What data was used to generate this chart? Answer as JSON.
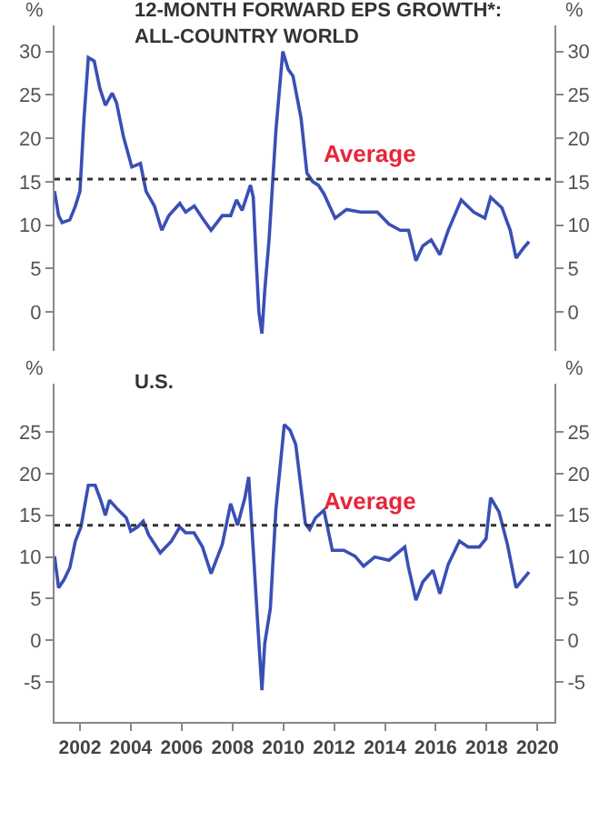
{
  "chart_data": [
    {
      "type": "line",
      "title": "12-MONTH FORWARD EPS GROWTH*:\nALL-COUNTRY WORLD",
      "ylabel": "%",
      "y2label": "%",
      "xlim": [
        2001,
        2020.67
      ],
      "ylim": [
        -4.5,
        33
      ],
      "yticks": [
        0,
        5,
        10,
        15,
        20,
        25,
        30
      ],
      "y2lim": [
        -4.5,
        33
      ],
      "y2ticks": [
        0,
        5,
        10,
        15,
        20,
        25,
        30
      ],
      "tick_labels": "y",
      "grid": false,
      "line_style": "solid",
      "marker": "none",
      "ref_lines": [
        {
          "axis": "y",
          "value": 15.3,
          "label": "Average",
          "color": "#333333",
          "line_style": "dotted"
        }
      ],
      "series": [
        {
          "color": "#3a4fb5",
          "x": [
            2001.0,
            2001.16,
            2001.3,
            2001.6,
            2001.82,
            2002.0,
            2002.16,
            2002.33,
            2002.56,
            2002.78,
            2003.0,
            2003.27,
            2003.44,
            2003.71,
            2004.04,
            2004.38,
            2004.6,
            2004.93,
            2005.22,
            2005.5,
            2005.93,
            2006.16,
            2006.5,
            2006.82,
            2007.16,
            2007.6,
            2007.93,
            2008.16,
            2008.38,
            2008.71,
            2008.82,
            2008.93,
            2009.04,
            2009.16,
            2009.27,
            2009.44,
            2009.71,
            2009.98,
            2010.2,
            2010.38,
            2010.7,
            2010.93,
            2011.16,
            2011.38,
            2011.6,
            2012.04,
            2012.49,
            2013.04,
            2013.7,
            2014.16,
            2014.6,
            2014.93,
            2015.22,
            2015.49,
            2015.82,
            2016.16,
            2016.49,
            2017.0,
            2017.49,
            2017.93,
            2018.16,
            2018.6,
            2018.93,
            2019.16,
            2019.49,
            2019.67
          ],
          "values": [
            13.9,
            11.1,
            10.3,
            10.6,
            12.2,
            13.9,
            22.3,
            29.3,
            28.9,
            25.8,
            23.8,
            25.2,
            24.1,
            20.2,
            16.7,
            17.1,
            13.9,
            12.2,
            9.4,
            11.1,
            12.5,
            11.5,
            12.2,
            10.8,
            9.4,
            11.1,
            11.1,
            12.9,
            11.7,
            14.6,
            13.2,
            6.2,
            0,
            -2.5,
            2.4,
            8.3,
            20.9,
            30,
            27.9,
            27.2,
            22.3,
            16,
            15,
            14.6,
            13.6,
            10.8,
            11.8,
            11.5,
            11.5,
            10.1,
            9.4,
            9.4,
            5.9,
            7.6,
            8.3,
            6.6,
            9.4,
            12.9,
            11.5,
            10.8,
            13.2,
            12,
            9.4,
            6.2,
            7.5,
            8.1
          ]
        }
      ]
    },
    {
      "type": "line",
      "title": "U.S.",
      "ylabel": "%",
      "y2label": "%",
      "xlim": [
        2001,
        2020.67
      ],
      "xticks": [
        2002,
        2004,
        2006,
        2008,
        2010,
        2012,
        2014,
        2016,
        2018,
        2020
      ],
      "ylim": [
        -9.8,
        30.8
      ],
      "yticks": [
        -5,
        0,
        5,
        10,
        15,
        20,
        25
      ],
      "y2lim": [
        -9.8,
        30.8
      ],
      "y2ticks": [
        -5,
        0,
        5,
        10,
        15,
        20,
        25
      ],
      "grid": false,
      "line_style": "solid",
      "marker": "none",
      "ref_lines": [
        {
          "axis": "y",
          "value": 13.8,
          "label": "Average",
          "color": "#333333",
          "line_style": "dotted"
        }
      ],
      "series": [
        {
          "color": "#3a4fb5",
          "x": [
            2001.0,
            2001.16,
            2001.38,
            2001.6,
            2001.82,
            2002.04,
            2002.33,
            2002.6,
            2002.82,
            2003.0,
            2003.16,
            2003.49,
            2003.82,
            2004.0,
            2004.27,
            2004.49,
            2004.71,
            2005.16,
            2005.6,
            2005.93,
            2006.16,
            2006.49,
            2006.82,
            2007.16,
            2007.6,
            2007.93,
            2008.2,
            2008.49,
            2008.64,
            2008.82,
            2009.0,
            2009.16,
            2009.27,
            2009.49,
            2009.71,
            2010.04,
            2010.27,
            2010.49,
            2010.87,
            2011.04,
            2011.27,
            2011.6,
            2011.93,
            2012.38,
            2012.82,
            2013.16,
            2013.6,
            2014.16,
            2014.78,
            2014.93,
            2015.22,
            2015.49,
            2015.89,
            2016.16,
            2016.49,
            2016.93,
            2017.27,
            2017.71,
            2017.98,
            2018.16,
            2018.49,
            2018.82,
            2019.16,
            2019.67
          ],
          "values": [
            10.1,
            6.3,
            7.3,
            8.7,
            11.9,
            13.6,
            18.6,
            18.6,
            16.8,
            15,
            16.8,
            15.7,
            14.7,
            13.1,
            13.6,
            14.3,
            12.6,
            10.5,
            11.9,
            13.6,
            12.9,
            12.9,
            11.2,
            8,
            11.5,
            16.4,
            13.8,
            17.1,
            19.6,
            10.8,
            1.7,
            -6,
            -0.4,
            3.8,
            15.7,
            25.9,
            25.2,
            23.5,
            14,
            13.3,
            14.7,
            15.6,
            10.8,
            10.8,
            10.1,
            8.9,
            10,
            9.6,
            11.2,
            8.7,
            4.8,
            7,
            8.4,
            5.6,
            9.1,
            11.9,
            11.2,
            11.2,
            12.2,
            17.1,
            15.4,
            11.5,
            6.3,
            8.2
          ]
        }
      ]
    }
  ]
}
